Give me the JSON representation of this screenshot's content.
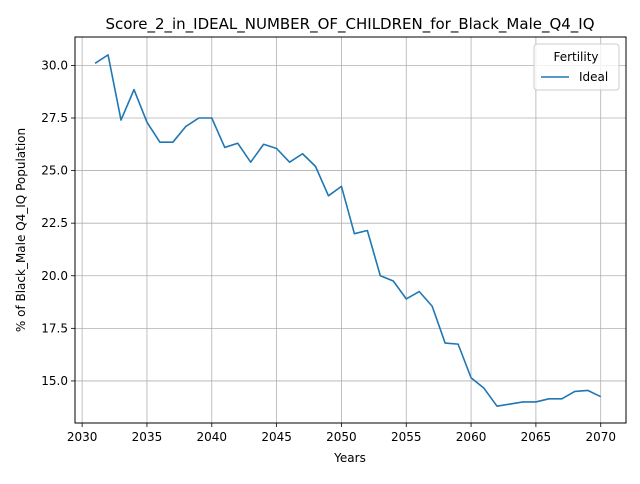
{
  "chart_data": {
    "type": "line",
    "title": "Score_2_in_IDEAL_NUMBER_OF_CHILDREN_for_Black_Male_Q4_IQ",
    "xlabel": "Years",
    "ylabel": "% of Black_Male Q4_IQ Population",
    "xlim": [
      2029.45,
      2071.95
    ],
    "ylim": [
      13.0,
      31.35
    ],
    "xticks": [
      2030,
      2035,
      2040,
      2045,
      2050,
      2055,
      2060,
      2065,
      2070
    ],
    "xtick_labels": [
      "2030",
      "2035",
      "2040",
      "2045",
      "2050",
      "2055",
      "2060",
      "2065",
      "2070"
    ],
    "yticks": [
      15.0,
      17.5,
      20.0,
      22.5,
      25.0,
      27.5,
      30.0
    ],
    "ytick_labels": [
      "15.0",
      "17.5",
      "20.0",
      "22.5",
      "25.0",
      "27.5",
      "30.0"
    ],
    "grid": true,
    "legend": {
      "title": "Fertility",
      "placement": "top-right"
    },
    "series": [
      {
        "name": "Ideal",
        "color": "#1f77b4",
        "x": [
          2031,
          2032,
          2033,
          2034,
          2035,
          2036,
          2037,
          2038,
          2039,
          2040,
          2041,
          2042,
          2043,
          2044,
          2045,
          2046,
          2047,
          2048,
          2049,
          2050,
          2051,
          2052,
          2053,
          2054,
          2055,
          2056,
          2057,
          2058,
          2059,
          2060,
          2061,
          2062,
          2063,
          2064,
          2065,
          2066,
          2067,
          2068,
          2069,
          2070
        ],
        "y": [
          30.1,
          30.5,
          27.4,
          28.85,
          27.3,
          26.35,
          26.35,
          27.1,
          27.5,
          27.5,
          26.1,
          26.3,
          25.4,
          26.25,
          26.05,
          25.4,
          25.8,
          25.2,
          23.8,
          24.25,
          22.0,
          22.15,
          20.0,
          19.75,
          18.9,
          19.25,
          18.55,
          16.8,
          16.75,
          15.15,
          14.65,
          13.8,
          13.9,
          14.0,
          14.0,
          14.15,
          14.15,
          14.5,
          14.55,
          14.25
        ]
      }
    ]
  }
}
